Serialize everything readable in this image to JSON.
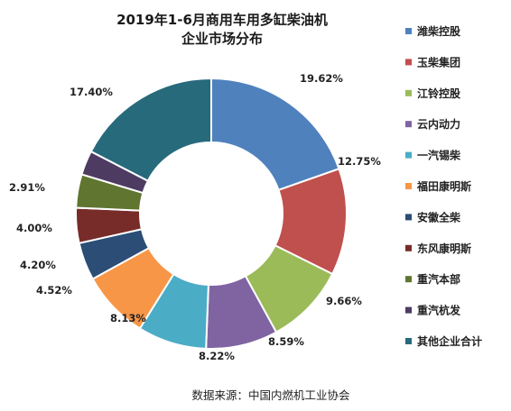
{
  "chart_data": {
    "type": "pie",
    "title": [
      "2019年1-6月商用车用多缸柴油机",
      "企业市场分布"
    ],
    "hole": "donut",
    "legend_position": "right",
    "labels": [
      "潍柴控股",
      "玉柴集团",
      "江铃控股",
      "云内动力",
      "一汽锡柴",
      "福田康明斯",
      "安徽全柴",
      "东风康明斯",
      "重汽本部",
      "重汽杭发",
      "其他企业合计"
    ],
    "values": [
      19.62,
      12.75,
      9.66,
      8.59,
      8.22,
      8.13,
      4.52,
      4.2,
      4.0,
      2.91,
      17.4
    ],
    "value_labels": [
      "19.62%",
      "12.75%",
      "9.66%",
      "8.59%",
      "8.22%",
      "8.13%",
      "4.52%",
      "4.20%",
      "4.00%",
      "2.91%",
      "17.40%"
    ],
    "colors": [
      "#4F81BD",
      "#C0504D",
      "#9BBB59",
      "#8064A2",
      "#4BACC6",
      "#F79646",
      "#2C4D75",
      "#772C2A",
      "#5F7530",
      "#4D3B62",
      "#276A7C"
    ]
  },
  "source": "数据来源：中国内燃机工业协会"
}
